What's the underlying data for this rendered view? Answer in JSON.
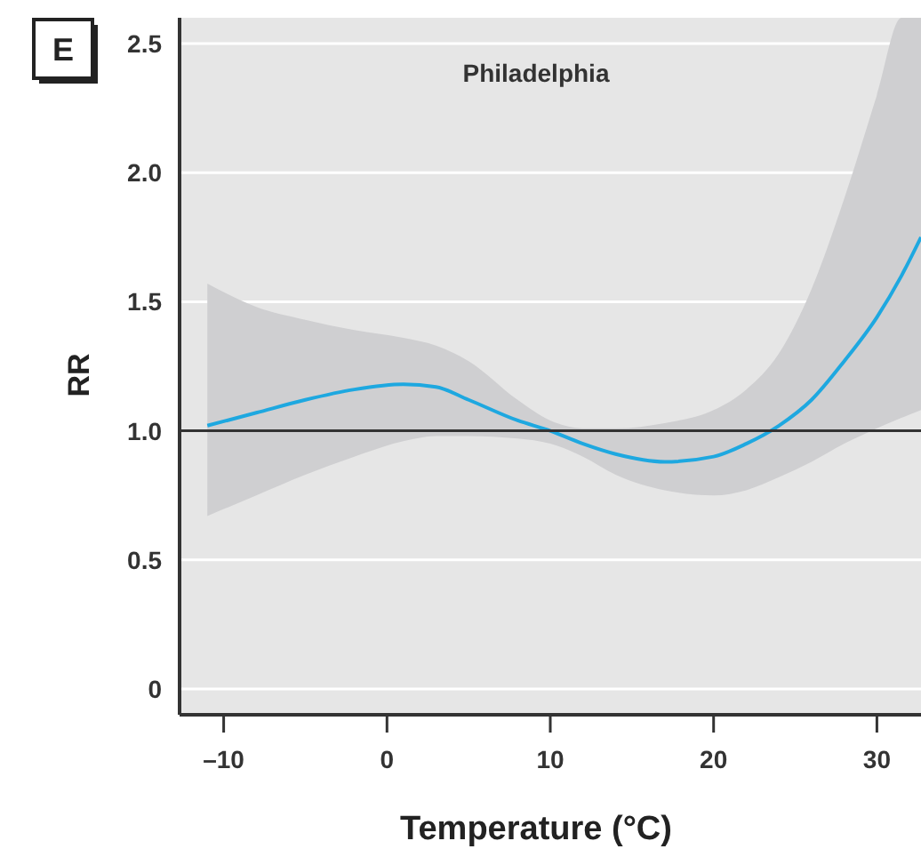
{
  "chart_data": {
    "type": "line",
    "title": "Philadelphia",
    "xlabel": "Temperature (°C)",
    "ylabel": "RR",
    "annotations": [
      "E"
    ],
    "x": [
      -11,
      -8,
      -5,
      -2,
      1,
      3,
      5,
      8,
      10,
      12,
      14,
      17,
      20,
      22,
      24,
      26,
      28,
      30,
      31.5,
      32.7
    ],
    "series": [
      {
        "color": "#1ea8e0",
        "values": [
          1.02,
          1.07,
          1.12,
          1.16,
          1.18,
          1.17,
          1.12,
          1.04,
          1.0,
          0.95,
          0.91,
          0.88,
          0.9,
          0.95,
          1.02,
          1.12,
          1.27,
          1.44,
          1.6,
          1.75
        ],
        "upper": [
          1.57,
          1.48,
          1.43,
          1.39,
          1.36,
          1.33,
          1.27,
          1.12,
          1.04,
          1.01,
          1.01,
          1.03,
          1.08,
          1.16,
          1.3,
          1.55,
          1.9,
          2.3,
          2.6,
          2.6
        ],
        "lower": [
          0.67,
          0.75,
          0.83,
          0.9,
          0.96,
          0.98,
          0.98,
          0.97,
          0.95,
          0.9,
          0.83,
          0.77,
          0.75,
          0.77,
          0.82,
          0.88,
          0.95,
          1.01,
          1.05,
          1.08
        ]
      }
    ],
    "xlim": [
      -12.7,
      32.7
    ],
    "ylim": [
      -0.1,
      2.6
    ],
    "xticks": [
      {
        "value": -10,
        "label": "–10"
      },
      0,
      10,
      20,
      30
    ],
    "yticks": [
      {
        "value": 0,
        "label": "0"
      },
      {
        "value": 0.5,
        "label": "0.5"
      },
      {
        "value": 1,
        "label": "1.0"
      },
      {
        "value": 1.5,
        "label": "1.5"
      },
      {
        "value": 2,
        "label": "2.0"
      },
      {
        "value": 2.5,
        "label": "2.5"
      }
    ],
    "grid": "y",
    "ref_lines": [
      {
        "axis": "y",
        "value": 1,
        "color": "#333333"
      }
    ]
  }
}
